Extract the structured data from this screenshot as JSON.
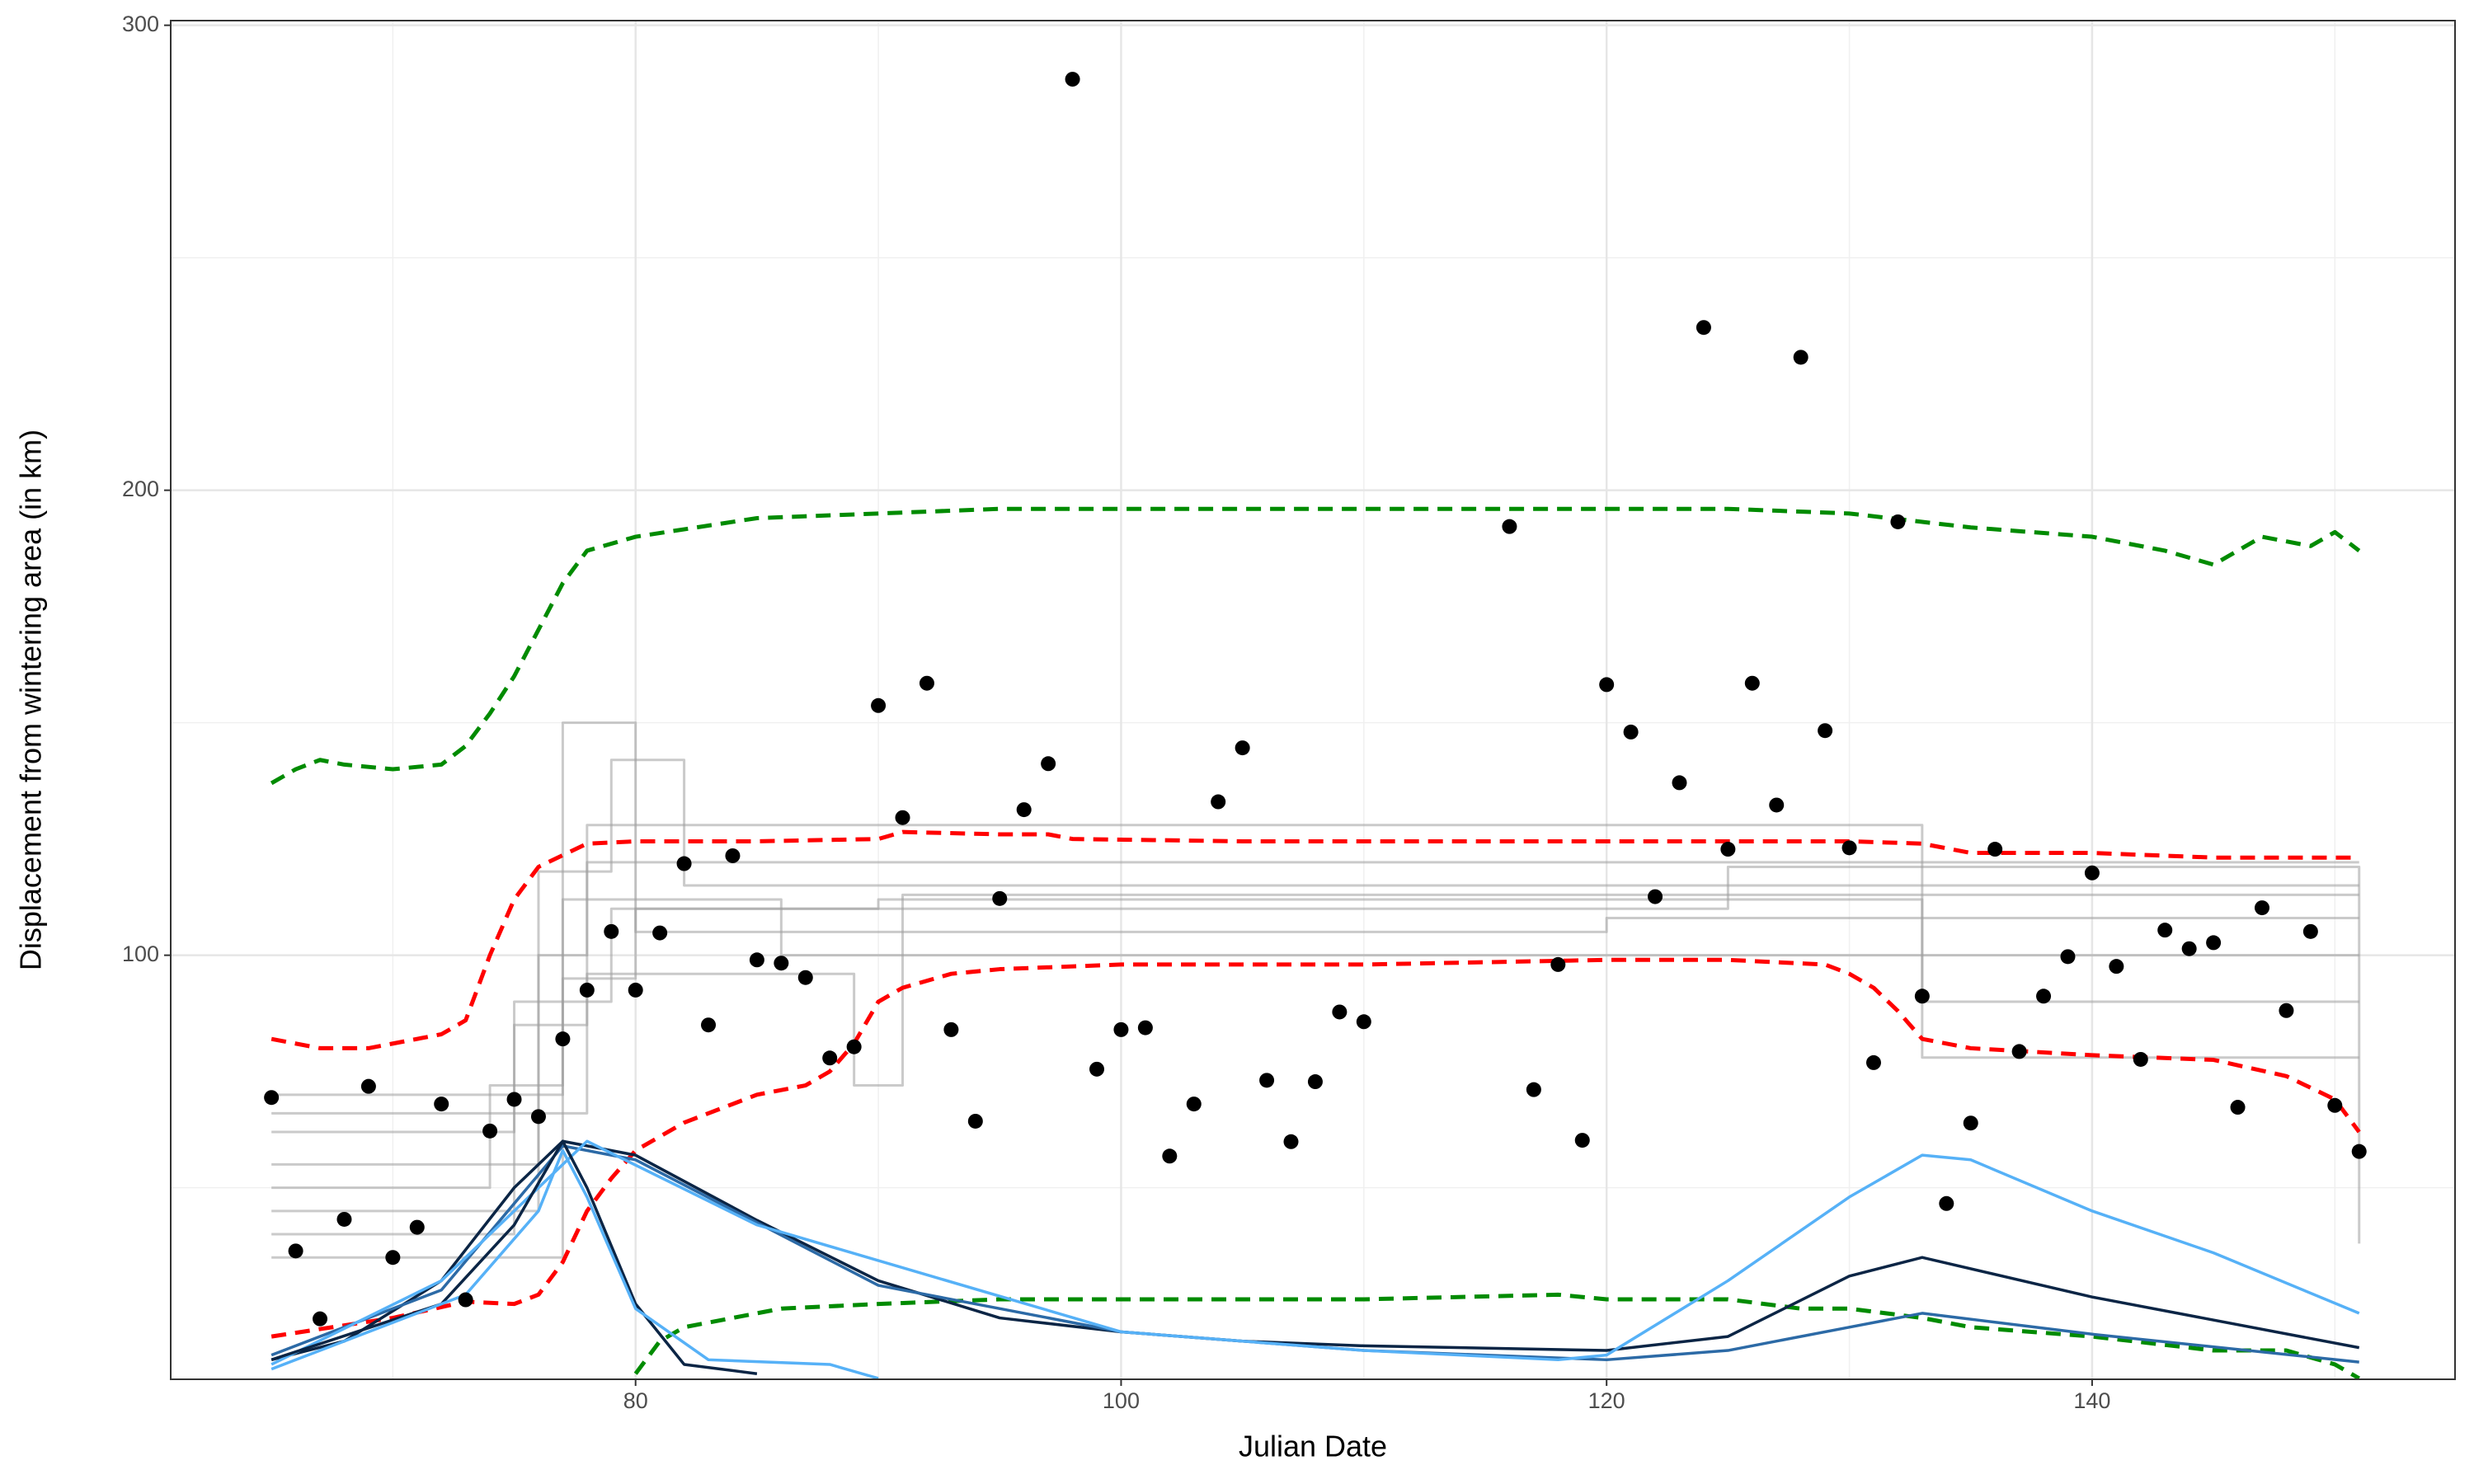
{
  "chart_data": {
    "type": "scatter",
    "xlabel": "Julian Date",
    "ylabel": "Displacement from wintering area (in km)",
    "xlim": [
      60.85,
      154.95
    ],
    "ylim": [
      8.8,
      301
    ],
    "xticks": [
      80,
      100,
      120,
      140
    ],
    "yticks": [
      100,
      200,
      300
    ],
    "minor_xticks": [
      70,
      90,
      110,
      130,
      150
    ],
    "minor_yticks": [
      50,
      150,
      250
    ],
    "grid": true,
    "series": [
      {
        "style": "step",
        "color": "#9e9e9e",
        "x": [
          65,
          74,
          75,
          79,
          90,
          130,
          133,
          151
        ],
        "values": [
          62,
          62,
          90,
          110,
          112,
          112,
          78,
          78
        ]
      },
      {
        "style": "step",
        "color": "#9e9e9e",
        "x": [
          65,
          73,
          76,
          78,
          128,
          151
        ],
        "values": [
          55,
          55,
          100,
          120,
          120,
          120
        ]
      },
      {
        "style": "step",
        "color": "#9e9e9e",
        "x": [
          65,
          75,
          77,
          80,
          120,
          151
        ],
        "values": [
          70,
          70,
          150,
          105,
          108,
          108
        ]
      },
      {
        "style": "step",
        "color": "#9e9e9e",
        "x": [
          65,
          74,
          76,
          79,
          82,
          151
        ],
        "values": [
          45,
          45,
          118,
          142,
          115,
          115
        ]
      },
      {
        "style": "step",
        "color": "#9e9e9e",
        "x": [
          65,
          73,
          75,
          78,
          130,
          133,
          151
        ],
        "values": [
          40,
          40,
          85,
          128,
          128,
          90,
          90
        ]
      },
      {
        "style": "step",
        "color": "#9e9e9e",
        "x": [
          65,
          72,
          74,
          77,
          86,
          151
        ],
        "values": [
          50,
          50,
          72,
          112,
          100,
          100
        ]
      },
      {
        "style": "step",
        "color": "#9e9e9e",
        "x": [
          65,
          76,
          78,
          89,
          91,
          151
        ],
        "values": [
          66,
          66,
          96,
          72,
          113,
          113
        ]
      },
      {
        "style": "step",
        "color": "#9e9e9e",
        "x": [
          65,
          74,
          77,
          80,
          122,
          125,
          148,
          151
        ],
        "values": [
          35,
          35,
          95,
          110,
          110,
          119,
          119,
          38
        ]
      },
      {
        "style": "dashed",
        "color": "#ff0000",
        "x": [
          65,
          67,
          69,
          72,
          73,
          74,
          75,
          76,
          78,
          80,
          85,
          90,
          91,
          95,
          97,
          98,
          105,
          130,
          133,
          135,
          140,
          145,
          151
        ],
        "values": [
          82,
          80,
          80,
          83,
          86,
          100,
          112,
          119,
          124,
          124.5,
          124.5,
          125,
          126.5,
          126,
          126,
          125,
          124.5,
          124.5,
          124,
          122,
          122,
          121,
          121
        ]
      },
      {
        "style": "dashed",
        "color": "#ff0000",
        "x": [
          65,
          70,
          73,
          75,
          76,
          77,
          78,
          79,
          80,
          82,
          85,
          87,
          88,
          89,
          90,
          91,
          93,
          95,
          100,
          110,
          120,
          125,
          129,
          130,
          131,
          132,
          133,
          135,
          140,
          145,
          148,
          150,
          151
        ],
        "values": [
          18,
          22,
          25.5,
          25,
          27,
          34,
          45,
          52,
          58,
          64,
          70,
          72,
          75,
          81,
          90,
          93,
          96,
          97,
          98,
          98,
          99,
          99,
          98,
          96,
          93,
          88,
          82,
          80,
          78.5,
          77.5,
          74,
          69,
          62
        ]
      },
      {
        "style": "dashed",
        "color": "#008b00",
        "x": [
          65,
          66,
          67,
          68,
          70,
          72,
          73,
          74,
          75,
          76,
          77,
          78,
          80,
          85,
          90,
          95,
          100,
          105,
          110,
          115,
          120,
          125,
          130,
          135,
          140,
          143,
          145,
          147,
          149,
          150,
          151
        ],
        "values": [
          137,
          140,
          142,
          141,
          140,
          141,
          145,
          152,
          160,
          170,
          180,
          187,
          190,
          194,
          195,
          196,
          196,
          196,
          196,
          196,
          196,
          196,
          195,
          192,
          190,
          187,
          184,
          190,
          188,
          191,
          187
        ]
      },
      {
        "style": "dashed",
        "color": "#008b00",
        "x": [
          80,
          81,
          82,
          84,
          86,
          90,
          95,
          100,
          110,
          118,
          120,
          125,
          128,
          130,
          133,
          135,
          140,
          145,
          148,
          150,
          151
        ],
        "values": [
          10,
          17,
          20,
          22,
          24,
          25,
          26,
          26,
          26,
          27,
          26,
          26,
          24,
          24,
          22,
          20,
          18,
          15,
          15,
          12,
          9
        ]
      },
      {
        "style": "solid",
        "color": "#0b2545",
        "x": [
          65,
          68,
          72,
          75,
          77,
          78,
          80,
          85,
          90,
          95,
          100,
          105,
          110,
          120,
          125,
          130,
          133,
          140,
          151
        ],
        "values": [
          13,
          17,
          30,
          50,
          60,
          59,
          57,
          43,
          30,
          22,
          19,
          17,
          16,
          15,
          18,
          31,
          35,
          26.5,
          15.6
        ]
      },
      {
        "style": "solid",
        "color": "#2c6aa6",
        "x": [
          65,
          72,
          77,
          80,
          90,
          100,
          110,
          120,
          125,
          130,
          133,
          140,
          151
        ],
        "values": [
          14,
          28,
          59,
          56,
          29,
          19,
          15,
          13,
          15,
          20,
          23,
          18.5,
          12.5
        ]
      },
      {
        "style": "solid",
        "color": "#56b1f7",
        "x": [
          65,
          72,
          78,
          85,
          100,
          110,
          118,
          120,
          125,
          130,
          133,
          135,
          140,
          145,
          151
        ],
        "values": [
          12,
          30,
          60,
          42,
          19,
          15,
          13,
          14,
          30,
          48,
          57,
          56,
          45,
          36,
          23
        ]
      },
      {
        "style": "solid",
        "color": "#0b2545",
        "x": [
          65,
          72,
          75,
          77,
          78,
          80,
          82,
          85
        ],
        "values": [
          13,
          25,
          42,
          60,
          50,
          25,
          12,
          10
        ]
      },
      {
        "style": "solid",
        "color": "#56b1f7",
        "x": [
          65,
          73,
          76,
          77,
          78,
          80,
          83,
          88,
          90
        ],
        "values": [
          11,
          27,
          45,
          58,
          48,
          24,
          13,
          12,
          9
        ]
      },
      {
        "style": "points",
        "color": "#000000",
        "x": [
          65,
          66,
          67,
          68,
          69,
          70,
          71,
          72,
          73,
          74,
          75,
          76,
          77,
          78,
          79,
          80,
          81,
          82,
          83,
          84,
          85,
          86,
          87,
          88,
          89,
          90,
          91,
          92,
          93,
          94,
          95,
          96,
          97,
          98,
          99,
          100,
          101,
          102,
          103,
          104,
          105,
          106,
          107,
          108,
          109,
          110,
          116,
          117,
          118,
          119,
          120,
          121,
          122,
          123,
          124,
          125,
          126,
          127,
          128,
          129,
          130,
          131,
          132,
          133,
          134,
          135,
          136,
          137,
          138,
          139,
          140,
          141,
          142,
          143,
          144,
          145,
          146,
          147,
          148,
          149,
          150,
          151
        ],
        "values": [
          69.4,
          36.4,
          21.8,
          43.2,
          71.8,
          35,
          41.5,
          68,
          25.9,
          62.2,
          69,
          65.3,
          82,
          92.5,
          105.1,
          92.5,
          104.8,
          119.7,
          85,
          121.4,
          99,
          98.3,
          95.2,
          77.9,
          80.3,
          153.7,
          129.6,
          158.5,
          84,
          64.3,
          112.2,
          131.3,
          141.2,
          288.4,
          75.5,
          84,
          84.4,
          56.8,
          68,
          133,
          144.6,
          73.1,
          59.9,
          72.8,
          87.8,
          85.7,
          192.2,
          71.1,
          98,
          60.2,
          158.2,
          148,
          112.6,
          137.1,
          235,
          122.8,
          158.5,
          132.3,
          228.6,
          148.3,
          123.1,
          76.9,
          193.2,
          91.2,
          46.6,
          63.9,
          122.8,
          79.3,
          91.2,
          99.7,
          117.7,
          97.6,
          77.6,
          105.4,
          101.4,
          102.7,
          67.3,
          110.2,
          88.1,
          105.1,
          67.7,
          57.8
        ]
      }
    ]
  }
}
